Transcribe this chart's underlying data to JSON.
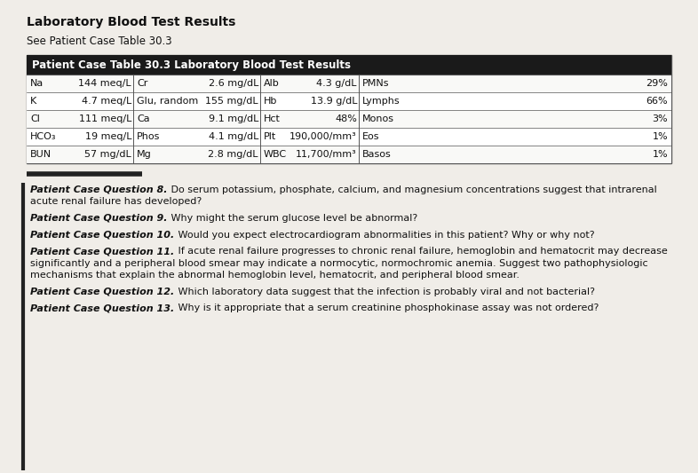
{
  "title": "Laboratory Blood Test Results",
  "subtitle": "See Patient Case Table 30.3",
  "table_header": "Patient Case Table 30.3 Laboratory Blood Test Results",
  "table_rows": [
    [
      "Na",
      "144 meq/L",
      "Cr",
      "2.6 mg/dL",
      "Alb",
      "4.3 g/dL",
      "PMNs",
      "29%"
    ],
    [
      "K",
      "4.7 meq/L",
      "Glu, random",
      "155 mg/dL",
      "Hb",
      "13.9 g/dL",
      "Lymphs",
      "66%"
    ],
    [
      "Cl",
      "111 meq/L",
      "Ca",
      "9.1 mg/dL",
      "Hct",
      "48%",
      "Monos",
      "3%"
    ],
    [
      "HCO₃",
      "19 meq/L",
      "Phos",
      "4.1 mg/dL",
      "Plt",
      "190,000/mm³",
      "Eos",
      "1%"
    ],
    [
      "BUN",
      "57 mg/dL",
      "Mg",
      "2.8 mg/dL",
      "WBC",
      "11,700/mm³",
      "Basos",
      "1%"
    ]
  ],
  "questions": [
    {
      "bold": "Patient Case Question 8.",
      "rest": " Do serum potassium, phosphate, calcium, and magnesium concentrations suggest that intrarenal acute renal failure has developed?"
    },
    {
      "bold": "Patient Case Question 9.",
      "rest": "  Why might the serum glucose level be abnormal?"
    },
    {
      "bold": "Patient Case Question 10.",
      "rest": "  Would you expect electrocardiogram abnormalities in this patient? Why or why not?"
    },
    {
      "bold": "Patient Case Question 11.",
      "rest": "  If acute renal failure progresses to chronic renal failure, hemoglobin and hematocrit may decrease significantly and a peripheral blood smear may indicate a normocytic, normochromic anemia. Suggest two pathophysiologic mechanisms that explain the abnormal hemoglobin level, hematocrit, and peripheral blood smear."
    },
    {
      "bold": "Patient Case Question 12.",
      "rest": "  Which laboratory data suggest that the infection is probably viral and not bacterial?"
    },
    {
      "bold": "Patient Case Question 13.",
      "rest": "  Why is it appropriate that a serum creatinine phosphokinase assay was not ordered?"
    }
  ],
  "bg_color": "#f0ede8",
  "table_header_bg": "#1a1a1a",
  "table_header_color": "#ffffff",
  "table_border_color": "#555555",
  "divider_color": "#222222",
  "text_color": "#111111",
  "font_size_title": 10,
  "font_size_subtitle": 8.5,
  "font_size_table_header": 8.5,
  "font_size_table": 8,
  "font_size_questions": 8
}
